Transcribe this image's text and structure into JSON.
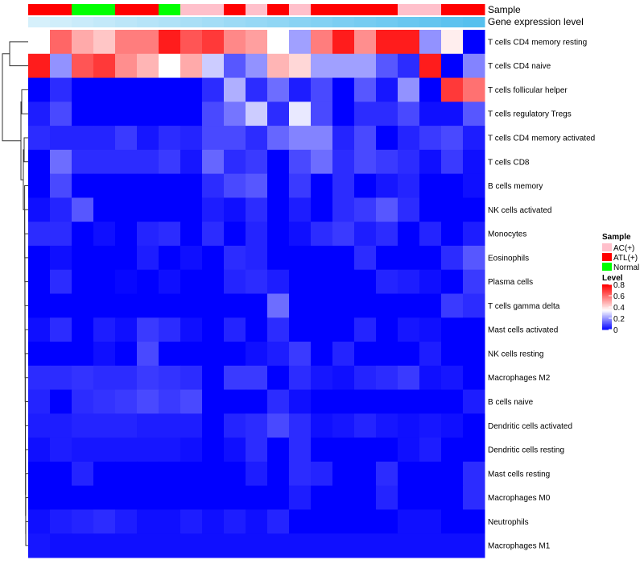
{
  "chart_data": {
    "type": "heatmap",
    "title": "",
    "annotation_labels": {
      "sample": "Sample",
      "expression": "Gene expression level"
    },
    "sample_groups": [
      "AC(+)",
      "ATL(+)",
      "Normal"
    ],
    "sample_group_colors": {
      "AC(+)": "#ffc0cb",
      "ATL(+)": "#ff0000",
      "Normal": "#00ff00"
    },
    "sample_annotation": [
      "ATL(+)",
      "ATL(+)",
      "Normal",
      "Normal",
      "ATL(+)",
      "ATL(+)",
      "Normal",
      "AC(+)",
      "AC(+)",
      "ATL(+)",
      "AC(+)",
      "ATL(+)",
      "AC(+)",
      "ATL(+)",
      "ATL(+)",
      "ATL(+)",
      "ATL(+)",
      "AC(+)",
      "AC(+)",
      "ATL(+)",
      "ATL(+)"
    ],
    "expression_level": [
      0.0,
      0.05,
      0.1,
      0.15,
      0.2,
      0.25,
      0.3,
      0.35,
      0.4,
      0.45,
      0.5,
      0.55,
      0.6,
      0.65,
      0.7,
      0.75,
      0.8,
      0.85,
      0.9,
      0.95,
      1.0
    ],
    "rows": [
      "T cells CD4 memory resting",
      "T cells CD4 naive",
      "T cells follicular helper",
      "T cells regulatory  Tregs",
      "T cells CD4 memory activated",
      "T cells CD8",
      "B cells memory",
      "NK cells activated",
      "Monocytes",
      "Eosinophils",
      "Plasma cells",
      "T cells gamma delta",
      "Mast cells activated",
      "NK cells resting",
      "Macrophages M2",
      "B cells naive",
      "Dendritic cells activated",
      "Dendritic cells resting",
      "Mast cells resting",
      "Macrophages M0",
      "Neutrophils",
      "Macrophages M1"
    ],
    "values": [
      [
        0.35,
        0.62,
        0.5,
        0.45,
        0.58,
        0.58,
        0.75,
        0.65,
        0.7,
        0.56,
        0.52,
        0.35,
        0.22,
        0.58,
        0.75,
        0.55,
        0.75,
        0.75,
        0.2,
        0.38,
        0.0
      ],
      [
        0.75,
        0.2,
        0.65,
        0.7,
        0.55,
        0.48,
        0.35,
        0.5,
        0.28,
        0.12,
        0.2,
        0.48,
        0.42,
        0.22,
        0.22,
        0.22,
        0.12,
        0.06,
        0.75,
        0.0,
        0.18
      ],
      [
        0.0,
        0.06,
        0.0,
        0.0,
        0.0,
        0.0,
        0.0,
        0.0,
        0.06,
        0.24,
        0.06,
        0.15,
        0.04,
        0.1,
        0.0,
        0.12,
        0.03,
        0.2,
        0.0,
        0.7,
        0.6
      ],
      [
        0.04,
        0.1,
        0.0,
        0.0,
        0.0,
        0.0,
        0.0,
        0.0,
        0.1,
        0.16,
        0.28,
        0.06,
        0.32,
        0.1,
        0.0,
        0.06,
        0.06,
        0.1,
        0.02,
        0.02,
        0.12
      ],
      [
        0.06,
        0.05,
        0.05,
        0.05,
        0.08,
        0.03,
        0.06,
        0.05,
        0.1,
        0.1,
        0.06,
        0.14,
        0.18,
        0.18,
        0.05,
        0.1,
        0.0,
        0.05,
        0.08,
        0.1,
        0.04
      ],
      [
        0.0,
        0.15,
        0.06,
        0.06,
        0.06,
        0.06,
        0.08,
        0.03,
        0.14,
        0.06,
        0.08,
        0.0,
        0.1,
        0.15,
        0.06,
        0.1,
        0.08,
        0.06,
        0.02,
        0.08,
        0.02
      ],
      [
        0.0,
        0.1,
        0.0,
        0.0,
        0.0,
        0.0,
        0.0,
        0.0,
        0.06,
        0.1,
        0.12,
        0.0,
        0.08,
        0.0,
        0.06,
        0.0,
        0.03,
        0.05,
        0.0,
        0.0,
        0.02
      ],
      [
        0.02,
        0.05,
        0.12,
        0.0,
        0.0,
        0.0,
        0.0,
        0.0,
        0.04,
        0.02,
        0.06,
        0.0,
        0.04,
        0.0,
        0.06,
        0.08,
        0.12,
        0.06,
        0.0,
        0.0,
        0.0
      ],
      [
        0.06,
        0.06,
        0.0,
        0.02,
        0.0,
        0.05,
        0.06,
        0.0,
        0.06,
        0.0,
        0.05,
        0.0,
        0.02,
        0.06,
        0.08,
        0.04,
        0.06,
        0.0,
        0.05,
        0.0,
        0.04
      ],
      [
        0.0,
        0.02,
        0.0,
        0.0,
        0.0,
        0.04,
        0.0,
        0.02,
        0.0,
        0.06,
        0.05,
        0.0,
        0.0,
        0.0,
        0.0,
        0.06,
        0.0,
        0.0,
        0.0,
        0.06,
        0.12
      ],
      [
        0.0,
        0.06,
        0.0,
        0.0,
        0.01,
        0.0,
        0.02,
        0.0,
        0.0,
        0.05,
        0.06,
        0.04,
        0.0,
        0.0,
        0.0,
        0.0,
        0.05,
        0.04,
        0.02,
        0.0,
        0.08
      ],
      [
        0.0,
        0.0,
        0.0,
        0.0,
        0.0,
        0.0,
        0.0,
        0.0,
        0.0,
        0.0,
        0.0,
        0.15,
        0.0,
        0.0,
        0.0,
        0.0,
        0.0,
        0.0,
        0.0,
        0.08,
        0.06
      ],
      [
        0.02,
        0.06,
        0.0,
        0.04,
        0.02,
        0.08,
        0.06,
        0.02,
        0.0,
        0.05,
        0.0,
        0.06,
        0.0,
        0.0,
        0.0,
        0.05,
        0.0,
        0.03,
        0.02,
        0.0,
        0.0
      ],
      [
        0.0,
        0.0,
        0.0,
        0.02,
        0.0,
        0.1,
        0.0,
        0.0,
        0.0,
        0.0,
        0.02,
        0.04,
        0.08,
        0.0,
        0.05,
        0.0,
        0.0,
        0.0,
        0.04,
        0.0,
        0.0
      ],
      [
        0.06,
        0.06,
        0.07,
        0.06,
        0.06,
        0.08,
        0.07,
        0.06,
        0.0,
        0.08,
        0.08,
        0.0,
        0.06,
        0.03,
        0.02,
        0.05,
        0.06,
        0.08,
        0.02,
        0.03,
        0.0
      ],
      [
        0.05,
        0.0,
        0.06,
        0.07,
        0.08,
        0.1,
        0.08,
        0.1,
        0.0,
        0.0,
        0.0,
        0.06,
        0.02,
        0.0,
        0.0,
        0.0,
        0.0,
        0.0,
        0.0,
        0.0,
        0.04
      ],
      [
        0.04,
        0.04,
        0.05,
        0.05,
        0.05,
        0.04,
        0.04,
        0.04,
        0.0,
        0.05,
        0.06,
        0.1,
        0.06,
        0.02,
        0.03,
        0.05,
        0.03,
        0.02,
        0.03,
        0.02,
        0.0
      ],
      [
        0.02,
        0.04,
        0.03,
        0.03,
        0.03,
        0.03,
        0.03,
        0.02,
        0.0,
        0.02,
        0.06,
        0.0,
        0.06,
        0.0,
        0.0,
        0.0,
        0.0,
        0.02,
        0.04,
        0.0,
        0.0
      ],
      [
        0.0,
        0.0,
        0.05,
        0.0,
        0.0,
        0.0,
        0.0,
        0.0,
        0.0,
        0.0,
        0.04,
        0.0,
        0.06,
        0.05,
        0.0,
        0.0,
        0.06,
        0.0,
        0.0,
        0.0,
        0.06
      ],
      [
        0.0,
        0.0,
        0.0,
        0.0,
        0.0,
        0.0,
        0.0,
        0.0,
        0.0,
        0.0,
        0.0,
        0.0,
        0.04,
        0.0,
        0.0,
        0.0,
        0.05,
        0.0,
        0.0,
        0.0,
        0.06
      ],
      [
        0.02,
        0.04,
        0.05,
        0.06,
        0.04,
        0.02,
        0.02,
        0.04,
        0.02,
        0.04,
        0.02,
        0.05,
        0.0,
        0.0,
        0.0,
        0.0,
        0.0,
        0.02,
        0.02,
        0.0,
        0.0
      ],
      [
        0.03,
        0.02,
        0.02,
        0.02,
        0.02,
        0.02,
        0.02,
        0.02,
        0.02,
        0.02,
        0.02,
        0.02,
        0.02,
        0.02,
        0.02,
        0.02,
        0.02,
        0.02,
        0.02,
        0.02,
        0.02
      ]
    ],
    "color_scale": {
      "low": "#0000ff",
      "mid": "#ffffff",
      "high": "#ff0000",
      "min": 0,
      "max": 0.8,
      "midpoint": 0.35
    },
    "legend": {
      "sample_title": "Sample",
      "level_title": "Level",
      "level_ticks": [
        "0.8",
        "0.6",
        "0.4",
        "0.2",
        "0"
      ],
      "level_tick_values": [
        0.8,
        0.6,
        0.4,
        0.2,
        0
      ]
    },
    "expression_colors": {
      "low": "#d6f0fb",
      "high": "#56c0ee"
    },
    "dendrogram": "hierarchical clustering of rows (left side)"
  }
}
